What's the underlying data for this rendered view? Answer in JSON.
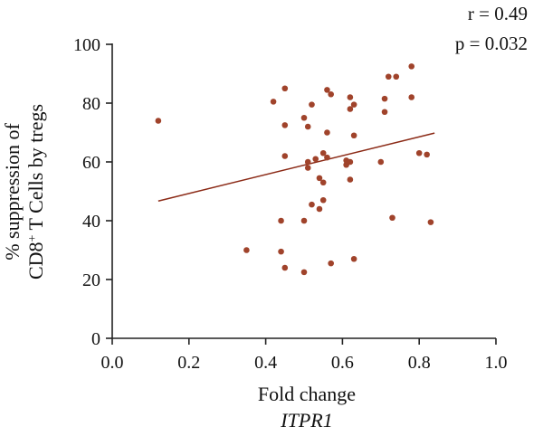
{
  "chart_data": {
    "type": "scatter",
    "xlabel": "Fold change",
    "xlabel_sub": "ITPR1",
    "ylabel_line1": "% suppression of",
    "ylabel_line2": {
      "pre": "CD8",
      "sup": "+",
      "post": " T Cells by tregs"
    },
    "xlim": [
      0.0,
      1.0
    ],
    "ylim": [
      0,
      100
    ],
    "xticks": [
      0.0,
      0.2,
      0.4,
      0.6,
      0.8,
      1.0
    ],
    "yticks": [
      0,
      20,
      40,
      60,
      80,
      100
    ],
    "xtick_labels": [
      "0.0",
      "0.2",
      "0.4",
      "0.6",
      "0.8",
      "1.0"
    ],
    "ytick_labels": [
      "0",
      "20",
      "40",
      "60",
      "80",
      "100"
    ],
    "annotations": [
      "r = 0.49",
      "p = 0.032"
    ],
    "point_color": "#a0432b",
    "line_color": "#8b2a16",
    "regression_line": {
      "x": [
        0.12,
        0.84
      ],
      "y": [
        46.7,
        69.8
      ]
    },
    "points": [
      {
        "x": 0.12,
        "y": 74
      },
      {
        "x": 0.35,
        "y": 30
      },
      {
        "x": 0.42,
        "y": 80.5
      },
      {
        "x": 0.44,
        "y": 40
      },
      {
        "x": 0.44,
        "y": 29.5
      },
      {
        "x": 0.45,
        "y": 85
      },
      {
        "x": 0.45,
        "y": 72.5
      },
      {
        "x": 0.45,
        "y": 62
      },
      {
        "x": 0.45,
        "y": 24
      },
      {
        "x": 0.5,
        "y": 75
      },
      {
        "x": 0.5,
        "y": 40
      },
      {
        "x": 0.5,
        "y": 22.5
      },
      {
        "x": 0.51,
        "y": 72
      },
      {
        "x": 0.51,
        "y": 60
      },
      {
        "x": 0.51,
        "y": 58
      },
      {
        "x": 0.52,
        "y": 79.5
      },
      {
        "x": 0.52,
        "y": 45.5
      },
      {
        "x": 0.53,
        "y": 61
      },
      {
        "x": 0.54,
        "y": 54.5
      },
      {
        "x": 0.54,
        "y": 44
      },
      {
        "x": 0.55,
        "y": 63
      },
      {
        "x": 0.55,
        "y": 53
      },
      {
        "x": 0.55,
        "y": 47
      },
      {
        "x": 0.56,
        "y": 84.5
      },
      {
        "x": 0.56,
        "y": 70
      },
      {
        "x": 0.56,
        "y": 61.5
      },
      {
        "x": 0.57,
        "y": 25.5
      },
      {
        "x": 0.57,
        "y": 83
      },
      {
        "x": 0.61,
        "y": 60.5
      },
      {
        "x": 0.61,
        "y": 59
      },
      {
        "x": 0.62,
        "y": 82
      },
      {
        "x": 0.62,
        "y": 78
      },
      {
        "x": 0.62,
        "y": 60
      },
      {
        "x": 0.62,
        "y": 54
      },
      {
        "x": 0.63,
        "y": 79.5
      },
      {
        "x": 0.63,
        "y": 69
      },
      {
        "x": 0.63,
        "y": 27
      },
      {
        "x": 0.7,
        "y": 60
      },
      {
        "x": 0.71,
        "y": 81.5
      },
      {
        "x": 0.71,
        "y": 77
      },
      {
        "x": 0.72,
        "y": 89
      },
      {
        "x": 0.73,
        "y": 41
      },
      {
        "x": 0.74,
        "y": 89
      },
      {
        "x": 0.78,
        "y": 92.5
      },
      {
        "x": 0.78,
        "y": 82
      },
      {
        "x": 0.8,
        "y": 63
      },
      {
        "x": 0.82,
        "y": 62.5
      },
      {
        "x": 0.83,
        "y": 39.5
      }
    ]
  }
}
